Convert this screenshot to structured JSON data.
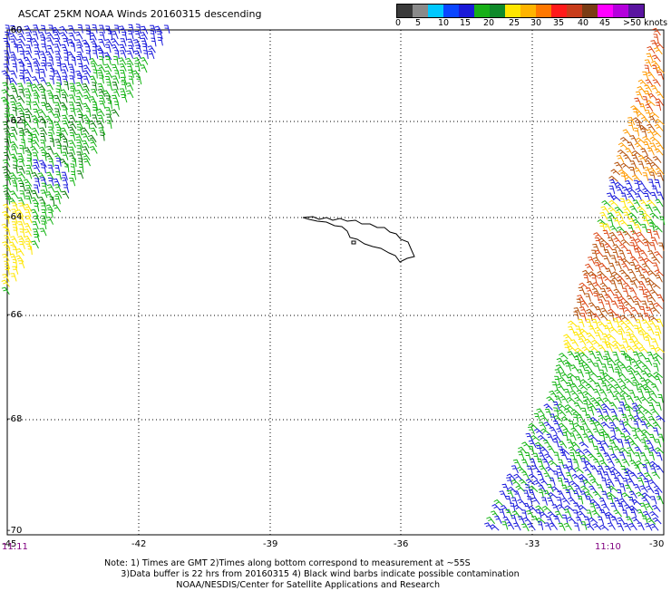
{
  "title": "ASCAT 25KM NOAA Winds 20160315 descending",
  "legend": {
    "colors": [
      "#3a3a3a",
      "#8a8a8a",
      "#00c8ff",
      "#0a46ff",
      "#1a1ad8",
      "#18b018",
      "#0f8a2a",
      "#ffe600",
      "#ffb400",
      "#ff7800",
      "#ff1a1a",
      "#c83c1a",
      "#7a3c14",
      "#ff00ff",
      "#b400dc",
      "#5a14a0"
    ],
    "labels": [
      "0",
      "5",
      "10",
      "15",
      "20",
      "25",
      "30",
      "35",
      "40",
      "45",
      ">50 knots"
    ]
  },
  "axes": {
    "lat_labels": [
      "-60",
      "-62",
      "-64",
      "-66",
      "-68",
      "-70"
    ],
    "lon_labels": [
      "-45",
      "-42",
      "-39",
      "-36",
      "-33",
      "-30"
    ]
  },
  "times": {
    "left": "11:11",
    "right": "11:10"
  },
  "notes": [
    "Note: 1) Times are GMT 2)Times along bottom correspond to measurement at ~55S",
    "      3)Data buffer is 22 hrs from 20160315 4) Black wind barbs indicate possible contamination",
    "                          NOAA/NESDIS/Center for Satellite Applications and Research"
  ],
  "wind_colors": {
    "blue": "#1a1adc",
    "green": "#14b414",
    "dark_green": "#0a7a0a",
    "yellow": "#ffe600",
    "orange": "#ff9a00",
    "red_orange": "#dc4614",
    "brown": "#b4500a"
  }
}
